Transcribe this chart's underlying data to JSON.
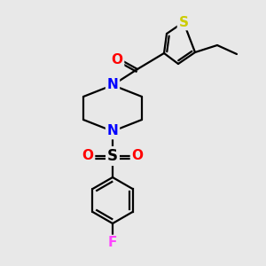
{
  "background_color": "#e8e8e8",
  "atom_colors": {
    "S_thiophene": "#cccc00",
    "N": "#0000ff",
    "O": "#ff0000",
    "F": "#ff44ff",
    "S_sulfonyl": "#000000",
    "C": "#000000"
  },
  "line_color": "#000000",
  "line_width": 1.6,
  "font_size": 11
}
